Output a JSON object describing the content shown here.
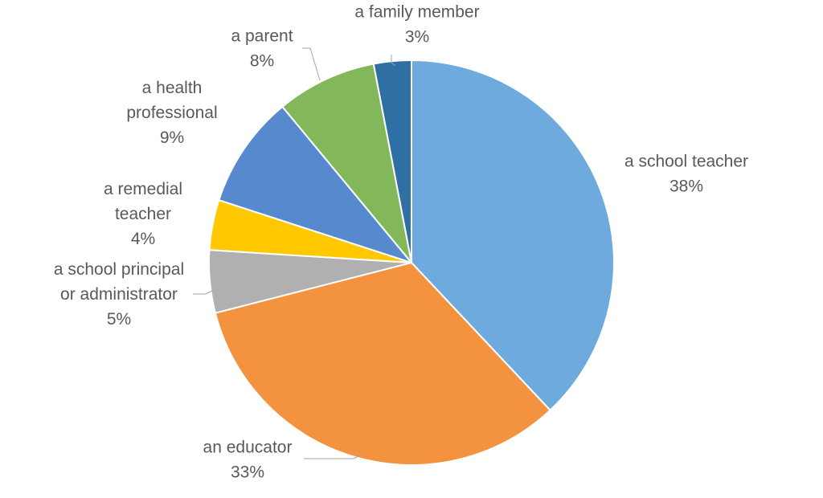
{
  "chart_data": {
    "type": "pie",
    "title": "",
    "start_angle_deg": 0,
    "direction": "clockwise",
    "legend": "none",
    "slices": [
      {
        "label": [
          "a school teacher"
        ],
        "value": 38,
        "value_label": "38%",
        "color": "#6eaadd"
      },
      {
        "label": [
          "an educator"
        ],
        "value": 33,
        "value_label": "33%",
        "color": "#f39340"
      },
      {
        "label": [
          "a school principal",
          "or administrator"
        ],
        "value": 5,
        "value_label": "5%",
        "color": "#b0b0b0"
      },
      {
        "label": [
          "a remedial",
          "teacher"
        ],
        "value": 4,
        "value_label": "4%",
        "color": "#ffc800"
      },
      {
        "label": [
          "a health",
          "professional"
        ],
        "value": 9,
        "value_label": "9%",
        "color": "#5789cf"
      },
      {
        "label": [
          "a parent"
        ],
        "value": 8,
        "value_label": "8%",
        "color": "#82b75a"
      },
      {
        "label": [
          "a family member"
        ],
        "value": 3,
        "value_label": "3%",
        "color": "#2f6fa3"
      }
    ]
  }
}
